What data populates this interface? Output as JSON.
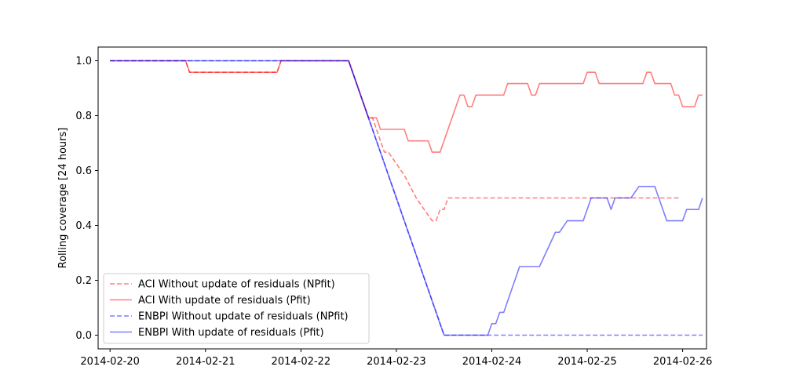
{
  "chart_data": {
    "type": "line",
    "title": "",
    "xlabel": "",
    "ylabel": "Rolling coverage [24 hours]",
    "xlim": [
      "2014-02-19 21:00",
      "2014-02-26 06:00"
    ],
    "ylim": [
      -0.05,
      1.05
    ],
    "x_ticks": [
      "2014-02-20",
      "2014-02-21",
      "2014-02-22",
      "2014-02-23",
      "2014-02-24",
      "2014-02-25",
      "2014-02-26"
    ],
    "y_ticks": [
      "0.0",
      "0.2",
      "0.4",
      "0.6",
      "0.8",
      "1.0"
    ],
    "grid": false,
    "legend_position": "lower-left",
    "series": [
      {
        "name": "ACI Without update of residuals (NPfit)",
        "color": "#ff0000",
        "dash": true,
        "points": [
          [
            "2014-02-20 00:00",
            1.0
          ],
          [
            "2014-02-20 19:00",
            1.0
          ],
          [
            "2014-02-20 20:00",
            0.958
          ],
          [
            "2014-02-21 18:00",
            0.958
          ],
          [
            "2014-02-21 19:00",
            1.0
          ],
          [
            "2014-02-22 12:00",
            1.0
          ],
          [
            "2014-02-22 17:00",
            0.792
          ],
          [
            "2014-02-22 18:00",
            0.792
          ],
          [
            "2014-02-22 20:00",
            0.708
          ],
          [
            "2014-02-22 21:00",
            0.667
          ],
          [
            "2014-02-22 22:00",
            0.667
          ],
          [
            "2014-02-23 00:00",
            0.625
          ],
          [
            "2014-02-23 02:00",
            0.583
          ],
          [
            "2014-02-23 05:00",
            0.5
          ],
          [
            "2014-02-23 07:00",
            0.458
          ],
          [
            "2014-02-23 09:00",
            0.417
          ],
          [
            "2014-02-23 10:00",
            0.417
          ],
          [
            "2014-02-23 11:00",
            0.458
          ],
          [
            "2014-02-23 12:00",
            0.458
          ],
          [
            "2014-02-23 13:00",
            0.5
          ],
          [
            "2014-02-25 23:00",
            0.5
          ]
        ]
      },
      {
        "name": "ACI With update of residuals (Pfit)",
        "color": "#ff0000",
        "dash": false,
        "points": [
          [
            "2014-02-20 00:00",
            1.0
          ],
          [
            "2014-02-20 19:00",
            1.0
          ],
          [
            "2014-02-20 20:00",
            0.958
          ],
          [
            "2014-02-21 18:00",
            0.958
          ],
          [
            "2014-02-21 19:00",
            1.0
          ],
          [
            "2014-02-22 12:00",
            1.0
          ],
          [
            "2014-02-22 17:00",
            0.792
          ],
          [
            "2014-02-22 19:00",
            0.792
          ],
          [
            "2014-02-22 20:00",
            0.75
          ],
          [
            "2014-02-23 02:00",
            0.75
          ],
          [
            "2014-02-23 03:00",
            0.708
          ],
          [
            "2014-02-23 08:00",
            0.708
          ],
          [
            "2014-02-23 09:00",
            0.667
          ],
          [
            "2014-02-23 11:00",
            0.667
          ],
          [
            "2014-02-23 16:00",
            0.875
          ],
          [
            "2014-02-23 17:00",
            0.875
          ],
          [
            "2014-02-23 18:00",
            0.833
          ],
          [
            "2014-02-23 19:00",
            0.833
          ],
          [
            "2014-02-23 20:00",
            0.875
          ],
          [
            "2014-02-24 03:00",
            0.875
          ],
          [
            "2014-02-24 04:00",
            0.917
          ],
          [
            "2014-02-24 09:00",
            0.917
          ],
          [
            "2014-02-24 10:00",
            0.875
          ],
          [
            "2014-02-24 11:00",
            0.875
          ],
          [
            "2014-02-24 12:00",
            0.917
          ],
          [
            "2014-02-24 23:00",
            0.917
          ],
          [
            "2014-02-25 00:00",
            0.958
          ],
          [
            "2014-02-25 02:00",
            0.958
          ],
          [
            "2014-02-25 03:00",
            0.917
          ],
          [
            "2014-02-25 14:00",
            0.917
          ],
          [
            "2014-02-25 15:00",
            0.958
          ],
          [
            "2014-02-25 16:00",
            0.958
          ],
          [
            "2014-02-25 17:00",
            0.917
          ],
          [
            "2014-02-25 21:00",
            0.917
          ],
          [
            "2014-02-25 22:00",
            0.875
          ],
          [
            "2014-02-25 23:00",
            0.875
          ],
          [
            "2014-02-26 00:00",
            0.833
          ],
          [
            "2014-02-26 03:00",
            0.833
          ],
          [
            "2014-02-26 04:00",
            0.875
          ],
          [
            "2014-02-26 05:00",
            0.875
          ]
        ]
      },
      {
        "name": "ENBPI Without update of residuals (NPfit)",
        "color": "#0000ff",
        "dash": true,
        "points": [
          [
            "2014-02-20 00:00",
            1.0
          ],
          [
            "2014-02-22 12:00",
            1.0
          ],
          [
            "2014-02-23 12:00",
            0.0
          ],
          [
            "2014-02-26 05:00",
            0.0
          ]
        ]
      },
      {
        "name": "ENBPI With update of residuals (Pfit)",
        "color": "#0000ff",
        "dash": false,
        "points": [
          [
            "2014-02-20 00:00",
            1.0
          ],
          [
            "2014-02-22 12:00",
            1.0
          ],
          [
            "2014-02-23 12:00",
            0.0
          ],
          [
            "2014-02-23 23:00",
            0.0
          ],
          [
            "2014-02-24 00:00",
            0.042
          ],
          [
            "2014-02-24 01:00",
            0.042
          ],
          [
            "2014-02-24 02:00",
            0.083
          ],
          [
            "2014-02-24 03:00",
            0.083
          ],
          [
            "2014-02-24 07:00",
            0.25
          ],
          [
            "2014-02-24 12:00",
            0.25
          ],
          [
            "2014-02-24 16:00",
            0.375
          ],
          [
            "2014-02-24 17:00",
            0.375
          ],
          [
            "2014-02-24 19:00",
            0.417
          ],
          [
            "2014-02-24 23:00",
            0.417
          ],
          [
            "2014-02-25 01:00",
            0.5
          ],
          [
            "2014-02-25 05:00",
            0.5
          ],
          [
            "2014-02-25 06:00",
            0.458
          ],
          [
            "2014-02-25 07:00",
            0.5
          ],
          [
            "2014-02-25 11:00",
            0.5
          ],
          [
            "2014-02-25 13:00",
            0.542
          ],
          [
            "2014-02-25 17:00",
            0.542
          ],
          [
            "2014-02-25 20:00",
            0.417
          ],
          [
            "2014-02-26 00:00",
            0.417
          ],
          [
            "2014-02-26 01:00",
            0.458
          ],
          [
            "2014-02-26 04:00",
            0.458
          ],
          [
            "2014-02-26 05:00",
            0.5
          ]
        ]
      }
    ]
  }
}
